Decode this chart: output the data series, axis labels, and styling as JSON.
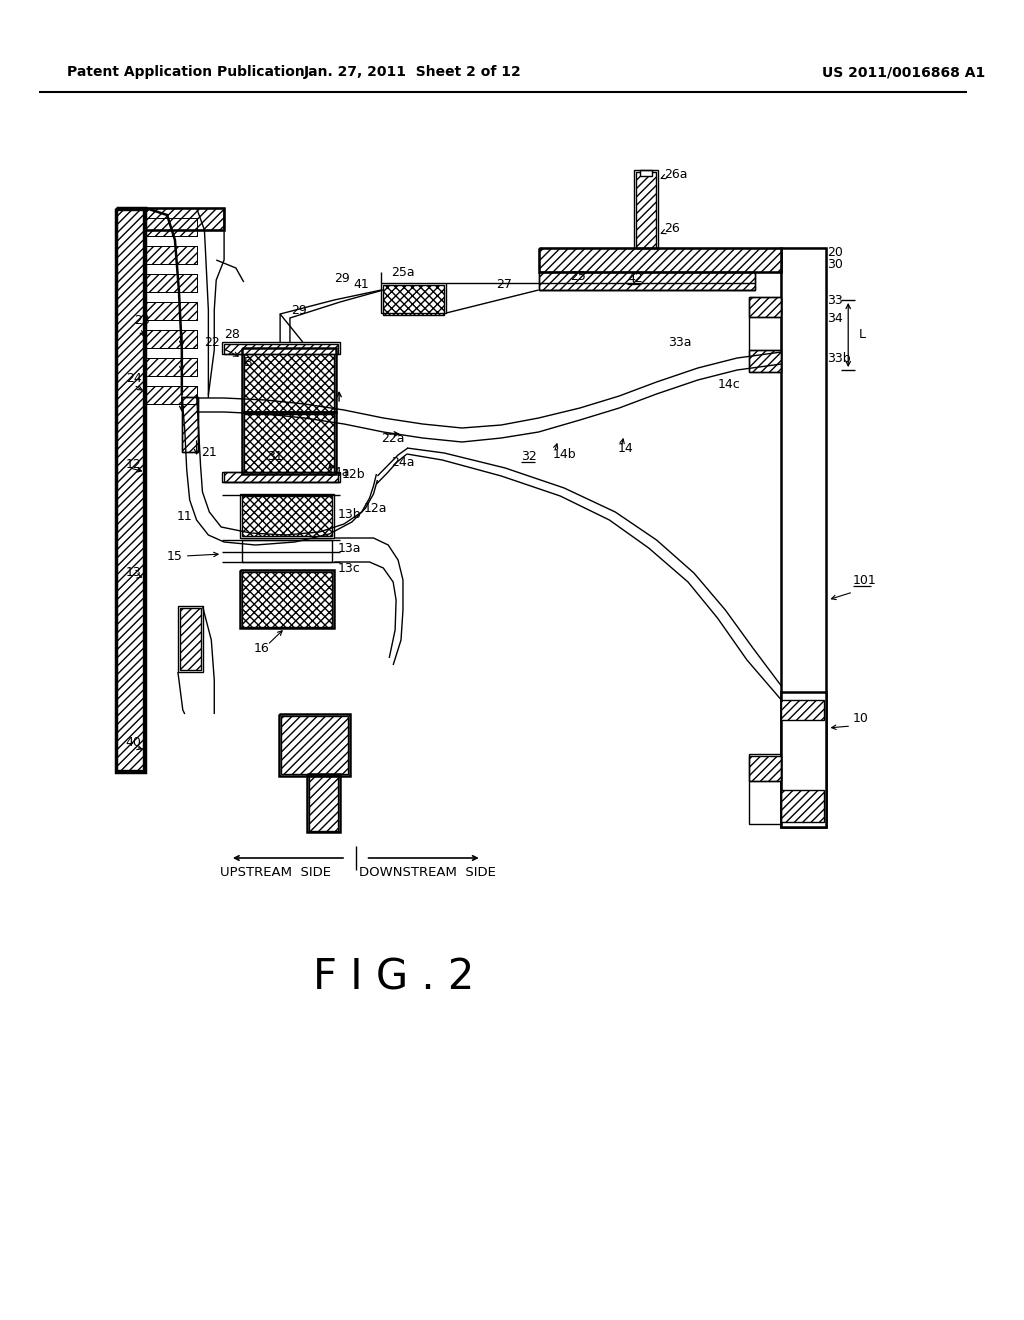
{
  "bg_color": "#ffffff",
  "header_left": "Patent Application Publication",
  "header_center": "Jan. 27, 2011  Sheet 2 of 12",
  "header_right": "US 2011/0016868 A1",
  "fig_label": "F I G . 2",
  "upstream_label": "UPSTREAM  SIDE",
  "downstream_label": "DOWNSTREAM  SIDE",
  "header_fontsize": 10,
  "fig_label_fontsize": 30,
  "label_fontsize": 9
}
